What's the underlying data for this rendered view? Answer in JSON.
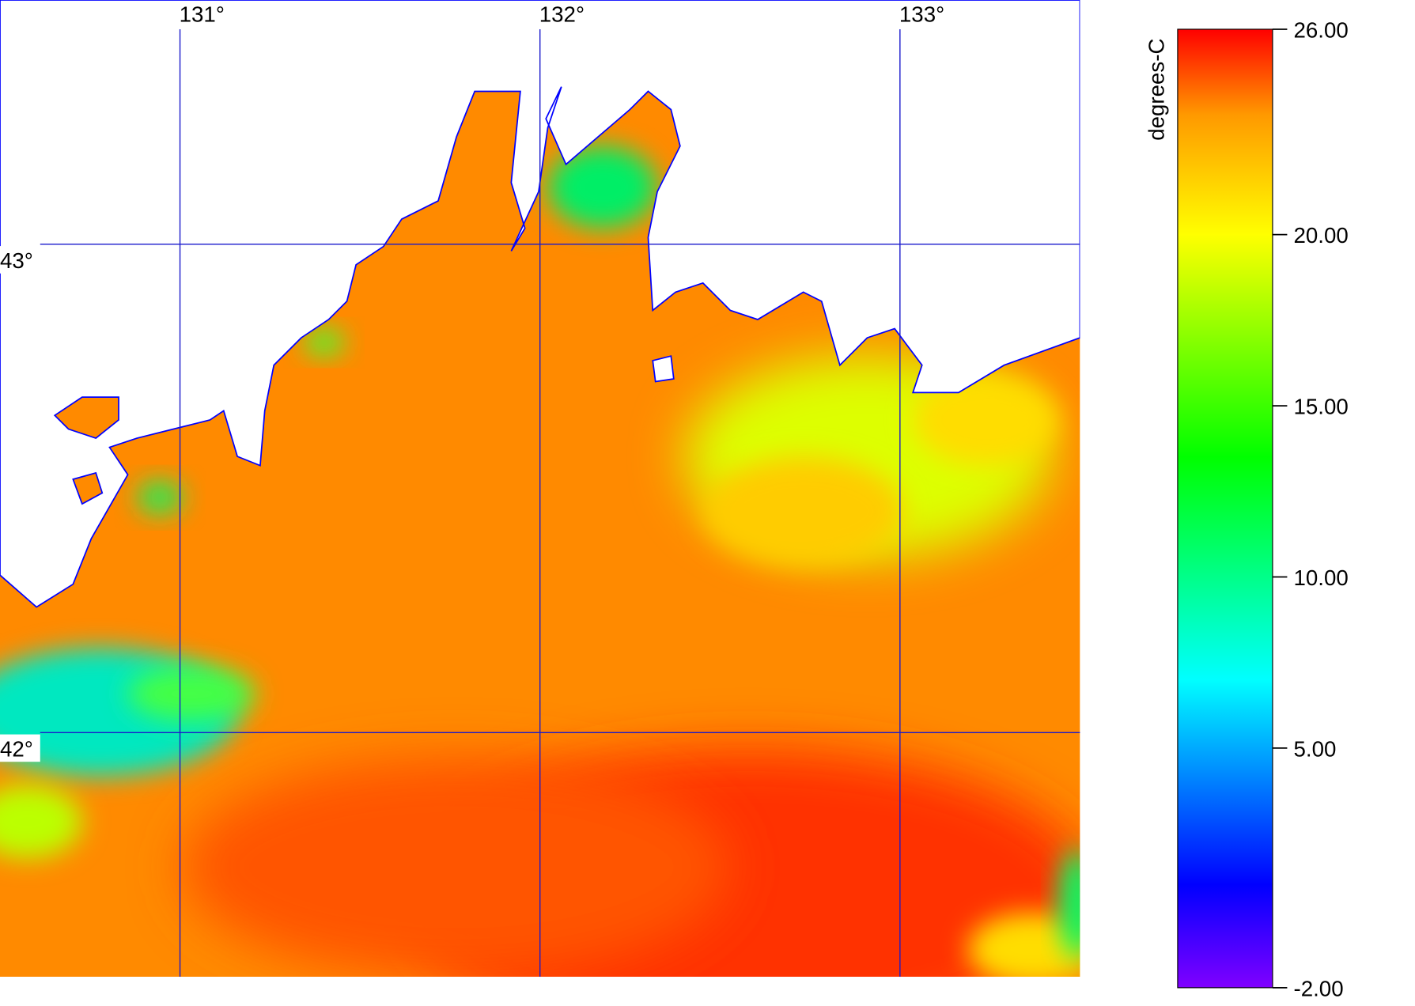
{
  "map": {
    "xlim": [
      130.5,
      133.5
    ],
    "ylim": [
      41.5,
      43.5
    ],
    "lon_grid": [
      {
        "value": 131,
        "label": "131°"
      },
      {
        "value": 132,
        "label": "132°"
      },
      {
        "value": 133,
        "label": "133°"
      }
    ],
    "lat_grid": [
      {
        "value": 43,
        "label": "43°"
      },
      {
        "value": 42,
        "label": "42°"
      }
    ],
    "grid_color": "#1a1acc"
  },
  "colorbar": {
    "label": "degrees-C",
    "range": [
      -2,
      26
    ],
    "ticks": [
      {
        "value": 26,
        "label": "26.00"
      },
      {
        "value": 20,
        "label": "20.00"
      },
      {
        "value": 15,
        "label": "15.00"
      },
      {
        "value": 10,
        "label": "10.00"
      },
      {
        "value": 5,
        "label": "5.00"
      },
      {
        "value": -2,
        "label": "-2.00"
      }
    ],
    "colormap": [
      {
        "value": -2,
        "color": "#8000ff"
      },
      {
        "value": 1,
        "color": "#0000ff"
      },
      {
        "value": 7,
        "color": "#00ffff"
      },
      {
        "value": 13.5,
        "color": "#00ff00"
      },
      {
        "value": 20,
        "color": "#ffff00"
      },
      {
        "value": 23.5,
        "color": "#ff9900"
      },
      {
        "value": 26,
        "color": "#ff0000"
      }
    ]
  }
}
